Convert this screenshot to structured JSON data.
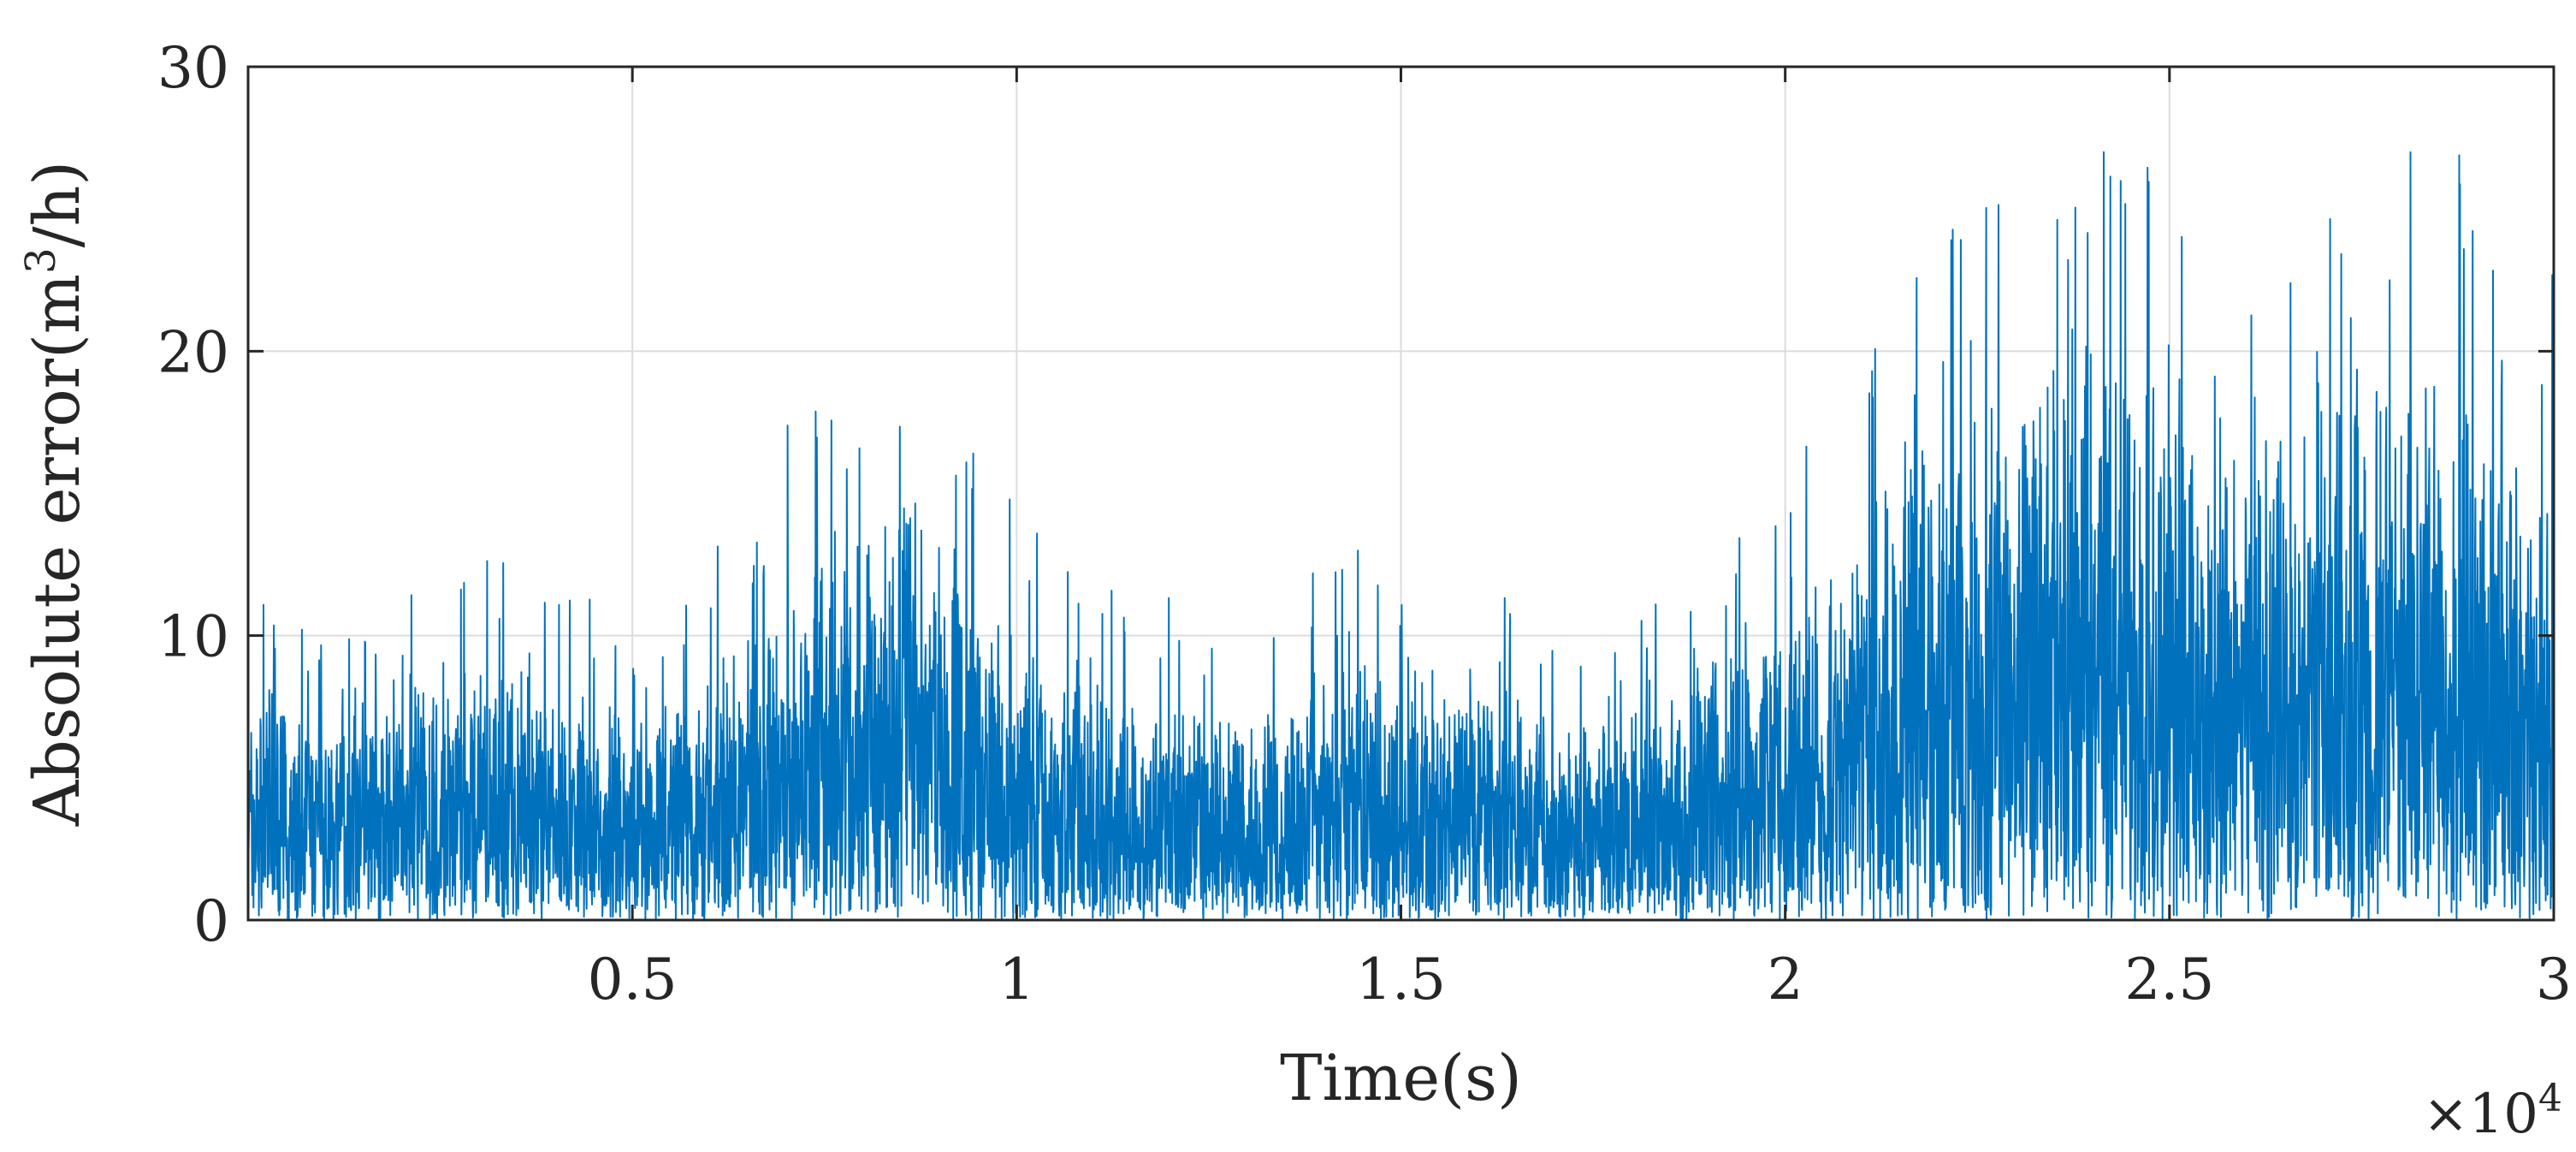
{
  "chart_data": {
    "type": "line",
    "title": "",
    "xlabel": "Time(s)",
    "ylabel_main": "Absolute error(m",
    "ylabel_sup": "3",
    "ylabel_tail": "/h)",
    "x_exponent_base": "×10",
    "x_exponent_power": "4",
    "xlim": [
      0,
      30000
    ],
    "ylim": [
      0,
      30
    ],
    "x_ticks": [
      5000,
      10000,
      15000,
      20000,
      25000,
      30000
    ],
    "x_tick_labels": [
      "0.5",
      "1",
      "1.5",
      "2",
      "2.5",
      "3"
    ],
    "y_ticks": [
      0,
      10,
      20,
      30
    ],
    "y_tick_labels": [
      "0",
      "10",
      "20",
      "30"
    ],
    "grid": true,
    "line_color": "#0072BD",
    "series": [
      {
        "x_start": 0,
        "x_step": 500,
        "mean_envelope": [
          4,
          4,
          3.5,
          3.5,
          4,
          4,
          4.5,
          4.5,
          4,
          4,
          3.5,
          3.5,
          4.5,
          5,
          6,
          6.5,
          7,
          8,
          7,
          6,
          5,
          4.5,
          4,
          4,
          4,
          3.5,
          3.5,
          4,
          4.5,
          4.5,
          4,
          4,
          4,
          4,
          3.5,
          3.5,
          4,
          4,
          4.5,
          5,
          6,
          6.5,
          7,
          8,
          8.5,
          9,
          9.5,
          10,
          10,
          9.5,
          9,
          8.5,
          8,
          8.5,
          9,
          9.5,
          10,
          10,
          9,
          8.5,
          8
        ]
      }
    ]
  }
}
